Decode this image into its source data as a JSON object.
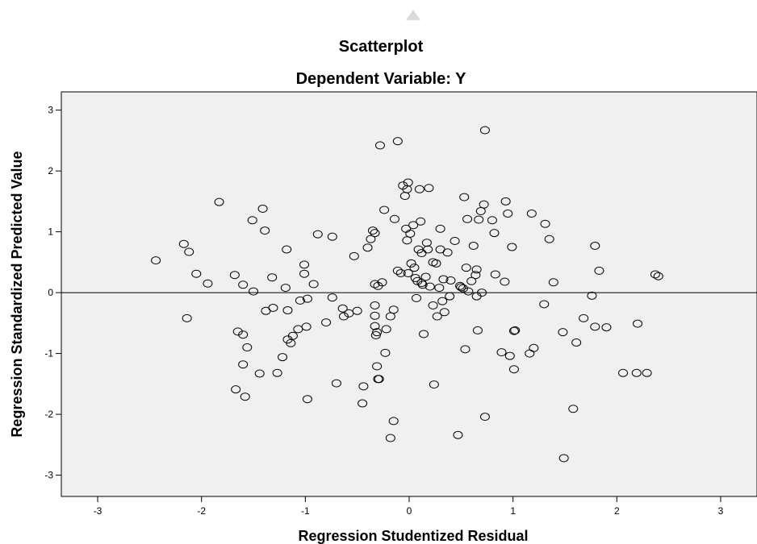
{
  "chart_data": {
    "type": "scatter",
    "title": "Scatterplot",
    "subtitle": "Dependent Variable: Y",
    "xlabel": "Regression Studentized Residual",
    "ylabel": "Regression Standardized Predicted Value",
    "xlim": [
      -3.35,
      3.35
    ],
    "ylim": [
      -3.35,
      3.3
    ],
    "xticks": [
      "-3",
      "-2",
      "-1",
      "0",
      "1",
      "2",
      "3"
    ],
    "yticks": [
      "-3",
      "-2",
      "-1",
      "0",
      "1",
      "2",
      "3"
    ],
    "reference_line_y": 0,
    "grid": false,
    "colors": {
      "plot_background": "#f0f0f0",
      "marker_stroke": "#000000",
      "reference_line": "#000000"
    },
    "points": [
      [
        -2.44,
        0.53
      ],
      [
        -2.17,
        0.8
      ],
      [
        -2.12,
        0.67
      ],
      [
        -2.14,
        -0.42
      ],
      [
        -2.05,
        0.31
      ],
      [
        -1.94,
        0.15
      ],
      [
        -1.83,
        1.49
      ],
      [
        -1.68,
        0.29
      ],
      [
        -1.6,
        0.13
      ],
      [
        -1.5,
        0.02
      ],
      [
        -1.51,
        1.19
      ],
      [
        -1.41,
        1.38
      ],
      [
        -1.39,
        1.02
      ],
      [
        -1.65,
        -0.64
      ],
      [
        -1.6,
        -0.69
      ],
      [
        -1.56,
        -0.9
      ],
      [
        -1.6,
        -1.18
      ],
      [
        -1.67,
        -1.59
      ],
      [
        -1.58,
        -1.71
      ],
      [
        -1.44,
        -1.33
      ],
      [
        -1.38,
        -0.3
      ],
      [
        -1.31,
        -0.25
      ],
      [
        -1.32,
        0.25
      ],
      [
        -1.27,
        -1.32
      ],
      [
        -1.22,
        -1.06
      ],
      [
        -1.19,
        0.08
      ],
      [
        -1.18,
        0.71
      ],
      [
        -1.17,
        -0.29
      ],
      [
        -1.17,
        -0.77
      ],
      [
        -1.14,
        -0.83
      ],
      [
        -1.12,
        -0.71
      ],
      [
        -1.07,
        -0.6
      ],
      [
        -1.05,
        -0.13
      ],
      [
        -1.01,
        0.46
      ],
      [
        -1.01,
        0.31
      ],
      [
        -0.99,
        -0.56
      ],
      [
        -0.98,
        -0.1
      ],
      [
        -0.98,
        -1.75
      ],
      [
        -0.92,
        0.14
      ],
      [
        -0.88,
        0.96
      ],
      [
        -0.8,
        -0.49
      ],
      [
        -0.74,
        0.92
      ],
      [
        -0.74,
        -0.08
      ],
      [
        -0.7,
        -1.49
      ],
      [
        -0.64,
        -0.26
      ],
      [
        -0.63,
        -0.39
      ],
      [
        -0.58,
        -0.34
      ],
      [
        -0.53,
        0.6
      ],
      [
        -0.5,
        -0.3
      ],
      [
        -0.45,
        -1.82
      ],
      [
        -0.44,
        -1.54
      ],
      [
        -0.4,
        0.74
      ],
      [
        -0.37,
        0.88
      ],
      [
        -0.35,
        1.02
      ],
      [
        -0.33,
        0.98
      ],
      [
        -0.33,
        -0.21
      ],
      [
        -0.33,
        -0.38
      ],
      [
        -0.33,
        -0.55
      ],
      [
        -0.32,
        -0.7
      ],
      [
        -0.31,
        -0.65
      ],
      [
        -0.31,
        -1.21
      ],
      [
        -0.3,
        -1.42
      ],
      [
        -0.29,
        -1.42
      ],
      [
        -0.28,
        2.42
      ],
      [
        -0.33,
        0.14
      ],
      [
        -0.3,
        0.11
      ],
      [
        -0.26,
        0.17
      ],
      [
        -0.24,
        1.36
      ],
      [
        -0.23,
        -0.99
      ],
      [
        -0.22,
        -0.6
      ],
      [
        -0.18,
        -0.39
      ],
      [
        -0.18,
        -2.39
      ],
      [
        -0.15,
        -2.11
      ],
      [
        -0.15,
        -0.28
      ],
      [
        -0.14,
        1.21
      ],
      [
        -0.11,
        2.49
      ],
      [
        -0.11,
        0.36
      ],
      [
        -0.08,
        0.32
      ],
      [
        -0.06,
        1.76
      ],
      [
        -0.04,
        1.59
      ],
      [
        -0.02,
        1.7
      ],
      [
        -0.01,
        1.81
      ],
      [
        -0.03,
        1.05
      ],
      [
        -0.02,
        0.86
      ],
      [
        -0.01,
        0.32
      ],
      [
        0.01,
        0.97
      ],
      [
        0.02,
        0.48
      ],
      [
        0.04,
        1.11
      ],
      [
        0.05,
        0.41
      ],
      [
        0.06,
        0.24
      ],
      [
        0.07,
        -0.09
      ],
      [
        0.08,
        0.19
      ],
      [
        0.09,
        0.71
      ],
      [
        0.1,
        1.7
      ],
      [
        0.11,
        1.17
      ],
      [
        0.12,
        0.16
      ],
      [
        0.12,
        0.65
      ],
      [
        0.13,
        0.13
      ],
      [
        0.14,
        -0.68
      ],
      [
        0.16,
        0.26
      ],
      [
        0.17,
        0.82
      ],
      [
        0.18,
        0.71
      ],
      [
        0.19,
        1.72
      ],
      [
        0.2,
        0.1
      ],
      [
        0.23,
        -0.21
      ],
      [
        0.23,
        0.5
      ],
      [
        0.24,
        -1.51
      ],
      [
        0.26,
        0.48
      ],
      [
        0.27,
        -0.39
      ],
      [
        0.29,
        0.08
      ],
      [
        0.3,
        1.05
      ],
      [
        0.3,
        0.71
      ],
      [
        0.32,
        -0.14
      ],
      [
        0.33,
        0.22
      ],
      [
        0.34,
        -0.32
      ],
      [
        0.37,
        0.66
      ],
      [
        0.39,
        -0.06
      ],
      [
        0.4,
        0.2
      ],
      [
        0.44,
        0.85
      ],
      [
        0.47,
        -2.34
      ],
      [
        0.49,
        0.11
      ],
      [
        0.5,
        0.09
      ],
      [
        0.52,
        0.07
      ],
      [
        0.53,
        1.57
      ],
      [
        0.54,
        -0.93
      ],
      [
        0.55,
        0.41
      ],
      [
        0.56,
        1.21
      ],
      [
        0.57,
        0.02
      ],
      [
        0.6,
        0.19
      ],
      [
        0.62,
        0.77
      ],
      [
        0.64,
        0.29
      ],
      [
        0.65,
        -0.06
      ],
      [
        0.65,
        0.38
      ],
      [
        0.66,
        -0.62
      ],
      [
        0.67,
        1.2
      ],
      [
        0.69,
        1.34
      ],
      [
        0.7,
        0.0
      ],
      [
        0.72,
        1.45
      ],
      [
        0.73,
        -2.04
      ],
      [
        0.73,
        2.67
      ],
      [
        0.8,
        1.19
      ],
      [
        0.82,
        0.98
      ],
      [
        0.83,
        0.3
      ],
      [
        0.89,
        -0.98
      ],
      [
        0.92,
        0.18
      ],
      [
        0.93,
        1.5
      ],
      [
        0.95,
        1.3
      ],
      [
        0.97,
        -1.04
      ],
      [
        0.99,
        0.75
      ],
      [
        1.01,
        -0.63
      ],
      [
        1.02,
        -0.62
      ],
      [
        1.01,
        -1.26
      ],
      [
        1.16,
        -1.0
      ],
      [
        1.18,
        1.3
      ],
      [
        1.2,
        -0.91
      ],
      [
        1.3,
        -0.19
      ],
      [
        1.31,
        1.13
      ],
      [
        1.35,
        0.88
      ],
      [
        1.39,
        0.17
      ],
      [
        1.48,
        -0.65
      ],
      [
        1.49,
        -2.72
      ],
      [
        1.58,
        -1.91
      ],
      [
        1.61,
        -0.82
      ],
      [
        1.68,
        -0.42
      ],
      [
        1.76,
        -0.05
      ],
      [
        1.79,
        -0.56
      ],
      [
        1.79,
        0.77
      ],
      [
        1.83,
        0.36
      ],
      [
        1.9,
        -0.57
      ],
      [
        2.06,
        -1.32
      ],
      [
        2.19,
        -1.32
      ],
      [
        2.2,
        -0.51
      ],
      [
        2.29,
        -1.32
      ],
      [
        2.37,
        0.3
      ],
      [
        2.4,
        0.27
      ]
    ]
  }
}
